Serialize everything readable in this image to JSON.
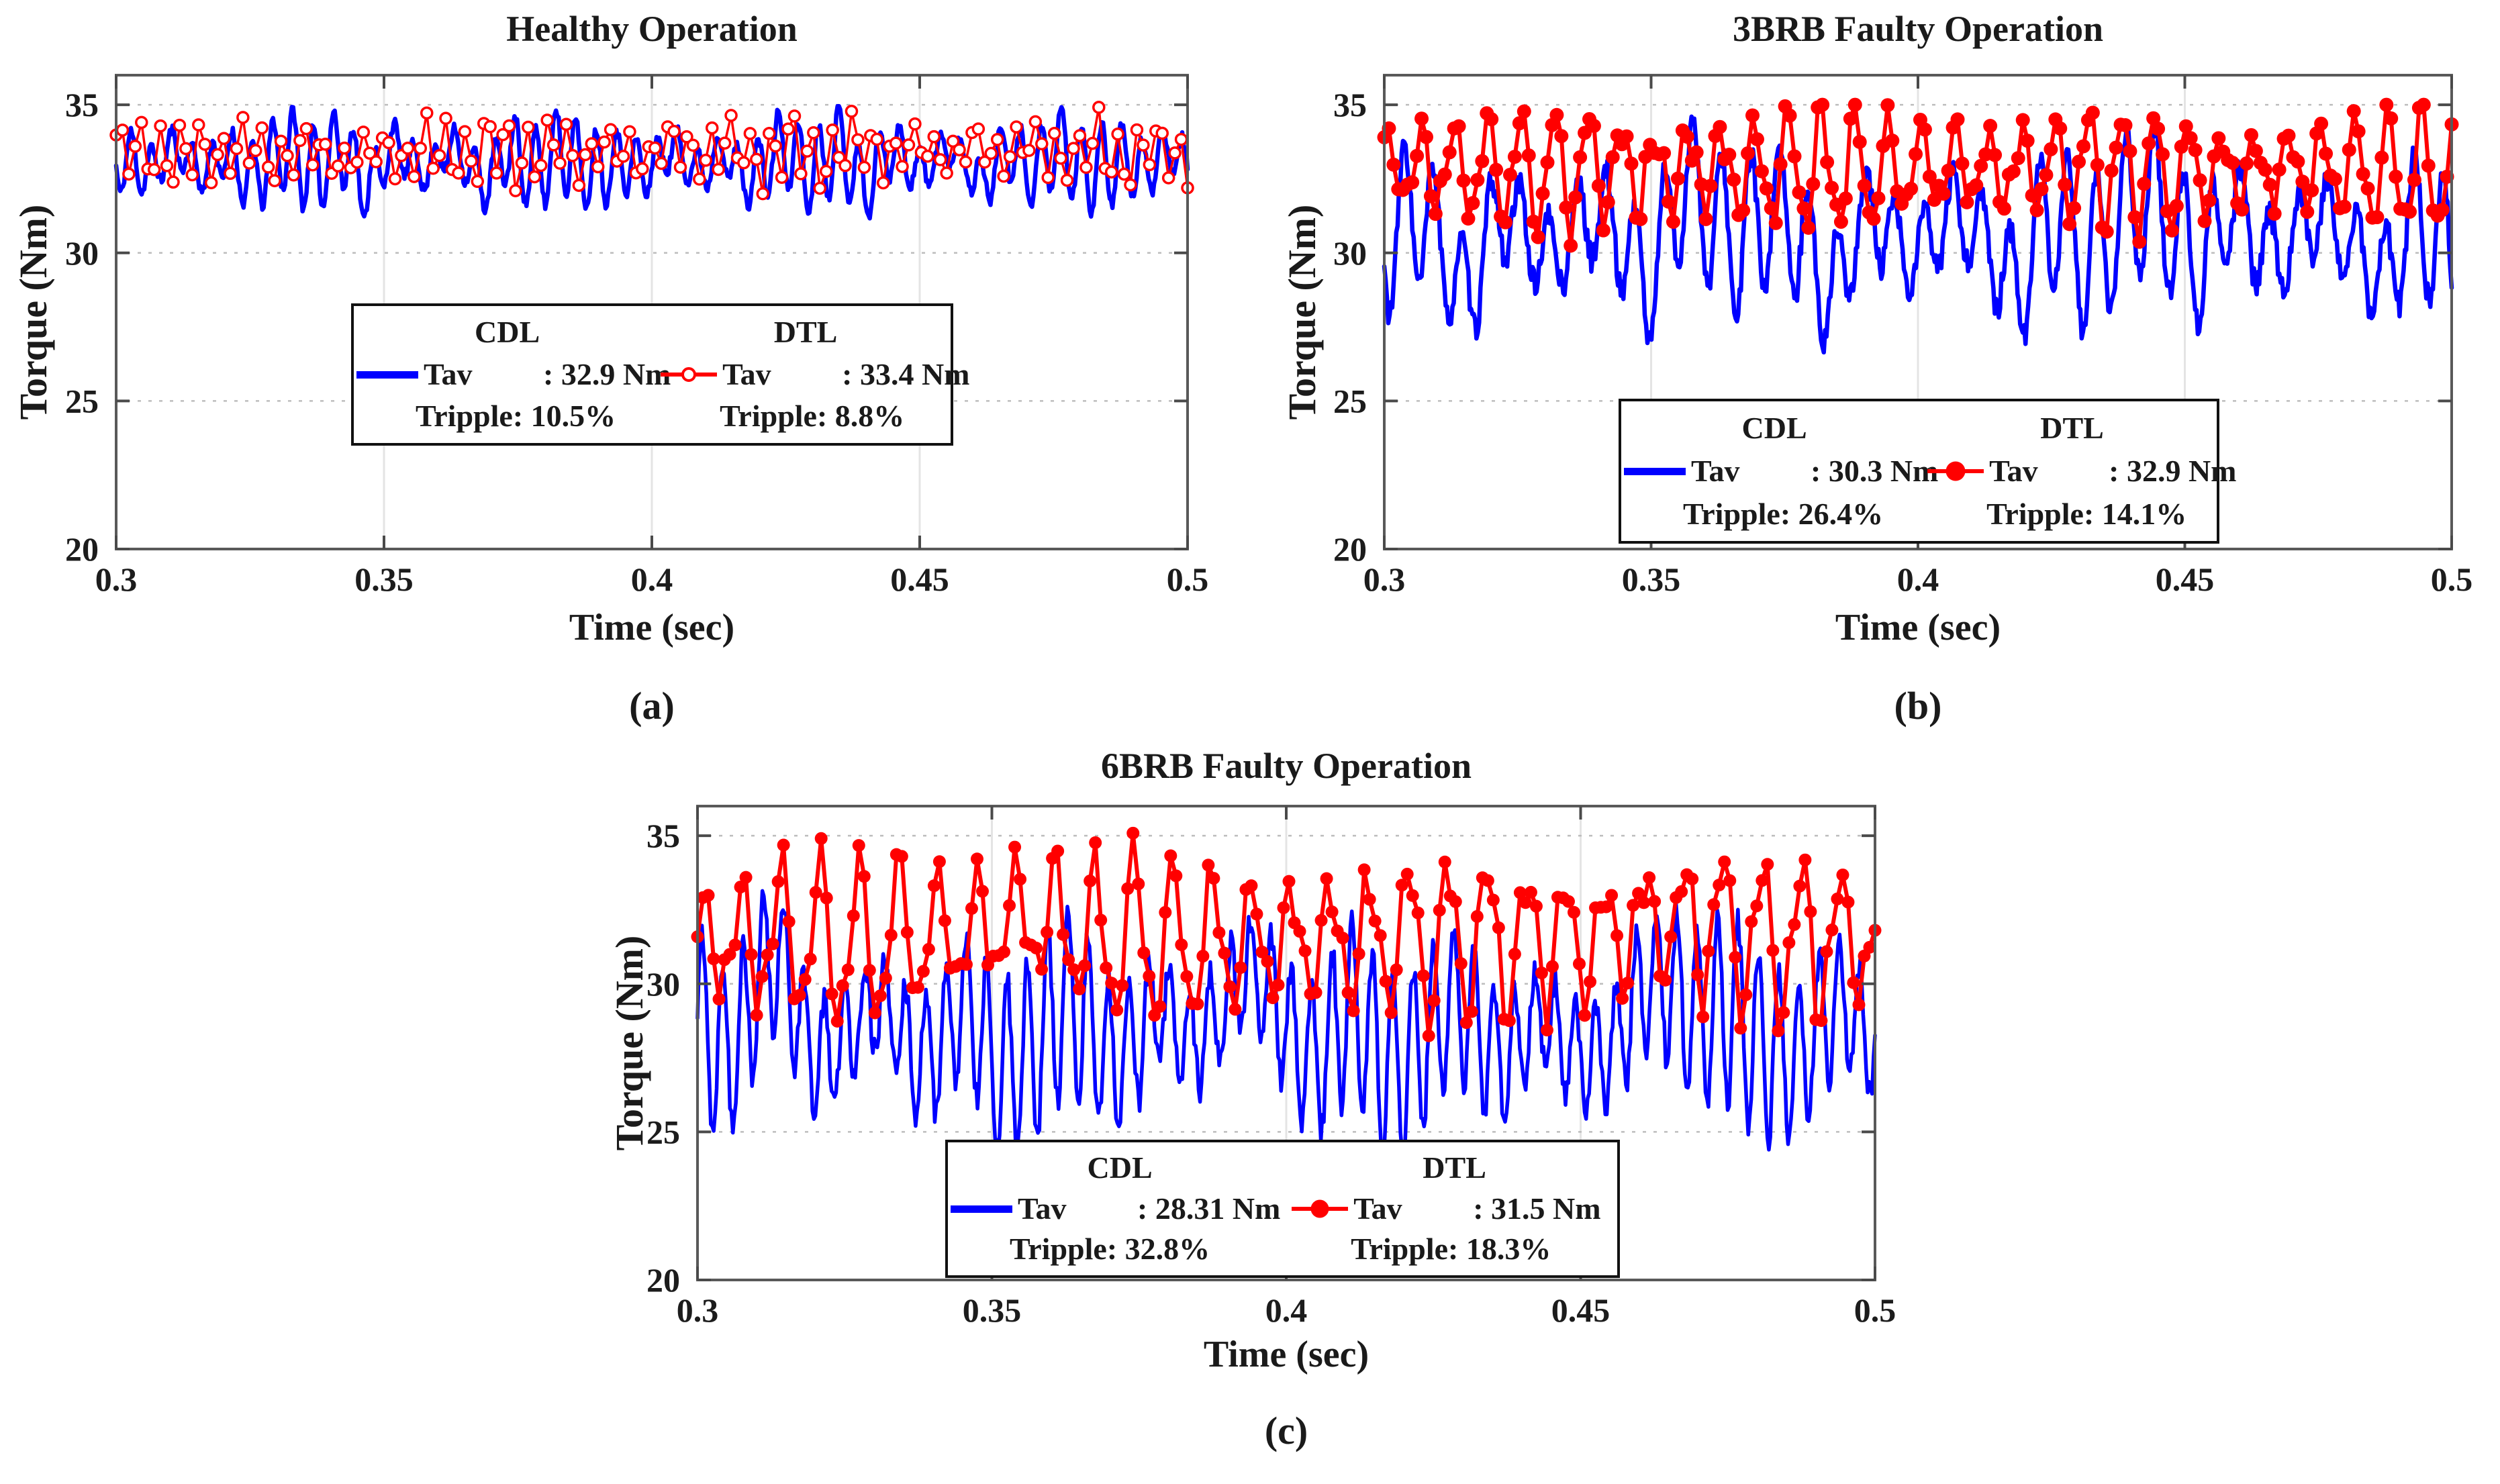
{
  "page": {
    "background": "#ffffff"
  },
  "chart_data": [
    {
      "id": "a",
      "type": "line",
      "caption": "(a)",
      "title": "Healthy Operation",
      "xlabel": "Time (sec)",
      "ylabel": "Torque (Nm)",
      "xlim": [
        0.3,
        0.5
      ],
      "ylim": [
        20,
        36
      ],
      "xticks": [
        0.3,
        0.35,
        0.4,
        0.45,
        0.5
      ],
      "xtick_labels": [
        "0.3",
        "0.35",
        "0.4",
        "0.45",
        "0.5"
      ],
      "yticks": [
        20,
        25,
        30,
        35
      ],
      "ytick_labels": [
        "20",
        "25",
        "30",
        "35"
      ],
      "grid": true,
      "legend": {
        "columns": [
          "CDL",
          "DTL"
        ]
      },
      "series": [
        {
          "name": "CDL",
          "legend_label": "Tav",
          "legend_value": ": 32.9 Nm",
          "ripple_text": "Tripple: 10.5%",
          "mean_nm": 32.9,
          "ripple_pct": 10.5,
          "color": "#0000ff",
          "line_width": 6.5,
          "marker": "none",
          "marker_radius": 0,
          "approx_range": [
            31.15,
            34.95
          ],
          "n_points": 800,
          "synth": {
            "center": 33.15,
            "a1": 1.05,
            "f1": 265,
            "p1": 0.0,
            "m": 0.38,
            "fm": 21,
            "pm": 1.2,
            "a2": 0.38,
            "f2": 97,
            "p2": 0.5,
            "noise": 0.2,
            "seed": 11,
            "pulses": [
              {
                "a": -0.55,
                "f": 43,
                "ph": 2.2,
                "pow": 5
              }
            ]
          }
        },
        {
          "name": "DTL",
          "legend_label": "Tav",
          "legend_value": ": 33.4 Nm",
          "ripple_text": "Tripple: 8.8%",
          "mean_nm": 33.4,
          "ripple_pct": 8.8,
          "color": "#ff0000",
          "line_width": 3.5,
          "marker": "open-circle",
          "marker_radius": 8,
          "approx_range": [
            31.9,
            34.95
          ],
          "n_points": 170,
          "synth": {
            "center": 33.45,
            "a1": 0.8,
            "f1": 263,
            "p1": 1.1,
            "m": 0.3,
            "fm": 17,
            "pm": 0.0,
            "a2": 0.3,
            "f2": 89,
            "p2": 2.0,
            "noise": 0.28,
            "seed": 22,
            "pulses": []
          }
        }
      ]
    },
    {
      "id": "b",
      "type": "line",
      "caption": "(b)",
      "title": "3BRB Faulty Operation",
      "xlabel": "Time (sec)",
      "ylabel": "Torque (Nm)",
      "xlim": [
        0.3,
        0.5
      ],
      "ylim": [
        20,
        36
      ],
      "xticks": [
        0.3,
        0.35,
        0.4,
        0.45,
        0.5
      ],
      "xtick_labels": [
        "0.3",
        "0.35",
        "0.4",
        "0.45",
        "0.5"
      ],
      "yticks": [
        20,
        25,
        30,
        35
      ],
      "ytick_labels": [
        "20",
        "25",
        "30",
        "35"
      ],
      "grid": true,
      "legend": {
        "columns": [
          "CDL",
          "DTL"
        ]
      },
      "series": [
        {
          "name": "CDL",
          "legend_label": "Tav",
          "legend_value": ": 30.3 Nm",
          "ripple_text": "Tripple: 26.4%",
          "mean_nm": 30.3,
          "ripple_pct": 26.4,
          "color": "#0000ff",
          "line_width": 6.5,
          "marker": "none",
          "marker_radius": 0,
          "approx_range": [
            26.2,
            34.6
          ],
          "n_points": 800,
          "synth": {
            "center": 30.6,
            "a1": 2.0,
            "f1": 185,
            "p1": 0.3,
            "m": 0.35,
            "fm": 14,
            "pm": 0.8,
            "a2": 0.7,
            "f2": 59,
            "p2": 1.4,
            "noise": 0.45,
            "seed": 33,
            "pulses": [
              {
                "a": -1.5,
                "f": 29,
                "ph": 0.6,
                "pow": 6
              },
              {
                "a": 0.9,
                "f": 11,
                "ph": 2.0,
                "pow": 4
              }
            ]
          }
        },
        {
          "name": "DTL",
          "legend_label": "Tav",
          "legend_value": ": 32.9 Nm",
          "ripple_text": "Tripple: 14.1%",
          "mean_nm": 32.9,
          "ripple_pct": 14.1,
          "color": "#ff0000",
          "line_width": 6,
          "marker": "filled-circle",
          "marker_radius": 10.5,
          "approx_range": [
            30.2,
            35.0
          ],
          "n_points": 230,
          "synth": {
            "center": 32.85,
            "a1": 1.55,
            "f1": 160,
            "p1": 0.9,
            "m": 0.3,
            "fm": 18,
            "pm": 2.1,
            "a2": 0.5,
            "f2": 310,
            "p2": 0.0,
            "noise": 0.3,
            "seed": 44,
            "pulses": []
          }
        }
      ]
    },
    {
      "id": "c",
      "type": "line",
      "caption": "(c)",
      "title": "6BRB Faulty Operation",
      "xlabel": "Time (sec)",
      "ylabel": "Torque (Nm)",
      "xlim": [
        0.3,
        0.5
      ],
      "ylim": [
        20,
        36
      ],
      "xticks": [
        0.3,
        0.35,
        0.4,
        0.45,
        0.5
      ],
      "xtick_labels": [
        "0.3",
        "0.35",
        "0.4",
        "0.45",
        "0.5"
      ],
      "yticks": [
        20,
        25,
        30,
        35
      ],
      "ytick_labels": [
        "20",
        "25",
        "30",
        "35"
      ],
      "grid": true,
      "legend": {
        "columns": [
          "CDL",
          "DTL"
        ]
      },
      "series": [
        {
          "name": "CDL",
          "legend_label": "Tav",
          "legend_value": ": 28.31 Nm",
          "ripple_text": "Tripple: 32.8%",
          "mean_nm": 28.31,
          "ripple_pct": 32.8,
          "color": "#0000ff",
          "line_width": 5.5,
          "marker": "none",
          "marker_radius": 0,
          "approx_range": [
            24.4,
            33.8
          ],
          "n_points": 800,
          "synth": {
            "center": 28.4,
            "a1": 2.4,
            "f1": 290,
            "p1": 0.0,
            "m": 0.3,
            "fm": 17,
            "pm": 1.0,
            "a2": 0.9,
            "f2": 61,
            "p2": 0.7,
            "noise": 0.5,
            "seed": 55,
            "pulses": [
              {
                "a": 1.6,
                "f": 13,
                "ph": 1.1,
                "pow": 6
              },
              {
                "a": -1.0,
                "f": 31,
                "ph": 2.4,
                "pow": 5
              }
            ]
          }
        },
        {
          "name": "DTL",
          "legend_label": "Tav",
          "legend_value": ": 31.5 Nm",
          "ripple_text": "Tripple: 18.3%",
          "mean_nm": 31.5,
          "ripple_pct": 18.3,
          "color": "#ff0000",
          "line_width": 6,
          "marker": "filled-circle",
          "marker_radius": 9.5,
          "approx_range": [
            27.8,
            35.2
          ],
          "n_points": 220,
          "synth": {
            "center": 31.5,
            "a1": 2.1,
            "f1": 150,
            "p1": 0.8,
            "m": 0.25,
            "fm": 19,
            "pm": 0.5,
            "a2": 0.8,
            "f2": 305,
            "p2": 1.6,
            "noise": 0.35,
            "seed": 66,
            "pulses": [
              {
                "a": 0.6,
                "f": 9,
                "ph": 0.3,
                "pow": 4
              }
            ]
          }
        }
      ]
    }
  ]
}
